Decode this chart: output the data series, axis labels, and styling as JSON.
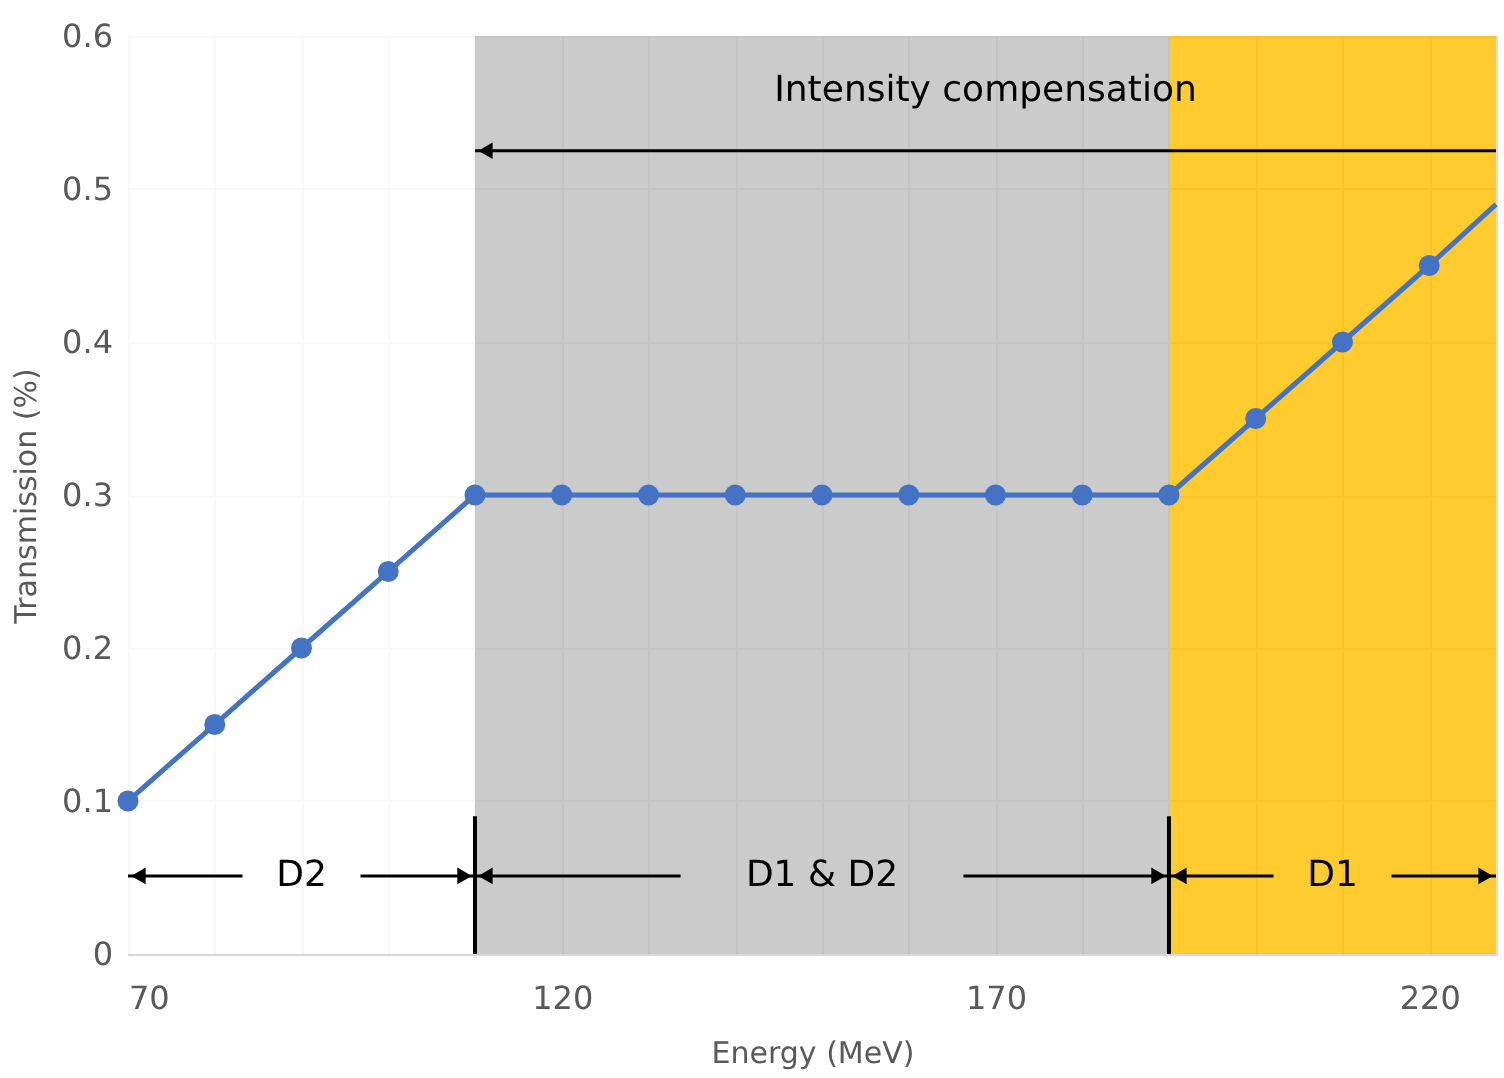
{
  "chart_data": {
    "type": "line",
    "xlabel": "Energy (MeV)",
    "ylabel": "Transmission (%)",
    "xlim": [
      70,
      227.7
    ],
    "ylim": [
      0,
      0.6
    ],
    "xticks": [
      70,
      {
        "value": 80,
        "label": null
      },
      {
        "value": 90,
        "label": null
      },
      {
        "value": 100,
        "label": null
      },
      {
        "value": 110,
        "label": null
      },
      120,
      {
        "value": 130,
        "label": null
      },
      {
        "value": 140,
        "label": null
      },
      {
        "value": 150,
        "label": null
      },
      {
        "value": 160,
        "label": null
      },
      170,
      {
        "value": 180,
        "label": null
      },
      {
        "value": 190,
        "label": null
      },
      {
        "value": 200,
        "label": null
      },
      {
        "value": 210,
        "label": null
      },
      220
    ],
    "yticks": [
      0,
      0.1,
      0.2,
      0.3,
      0.4,
      0.5,
      0.6
    ],
    "grid": true,
    "series": [
      {
        "color": "#4472c4",
        "marker": "circle",
        "x": [
          70,
          80,
          90,
          100,
          110,
          120,
          130,
          140,
          150,
          160,
          170,
          180,
          190,
          200,
          210,
          220
        ],
        "values": [
          0.1,
          0.15,
          0.2,
          0.25,
          0.3,
          0.3,
          0.3,
          0.3,
          0.3,
          0.3,
          0.3,
          0.3,
          0.3,
          0.35,
          0.4,
          0.45
        ]
      },
      {
        "color": "#4472c4",
        "marker": "none",
        "x": [
          220,
          227.7
        ],
        "values": [
          0.45,
          0.49
        ]
      }
    ],
    "bands": [
      {
        "axis": "x",
        "from": 70,
        "to": 110,
        "label": "D2",
        "color": "#ffffff"
      },
      {
        "axis": "x",
        "from": 110,
        "to": 190,
        "label": "D1 & D2",
        "color": "#bfbfbf"
      },
      {
        "axis": "x",
        "from": 190,
        "to": 227.7,
        "label": "D1",
        "color": "#ffc000"
      }
    ],
    "ref_lines": [
      {
        "axis": "x",
        "value": 110,
        "label": null
      },
      {
        "axis": "x",
        "value": 190,
        "label": null
      }
    ],
    "annotations": [
      "Intensity compensation"
    ]
  }
}
